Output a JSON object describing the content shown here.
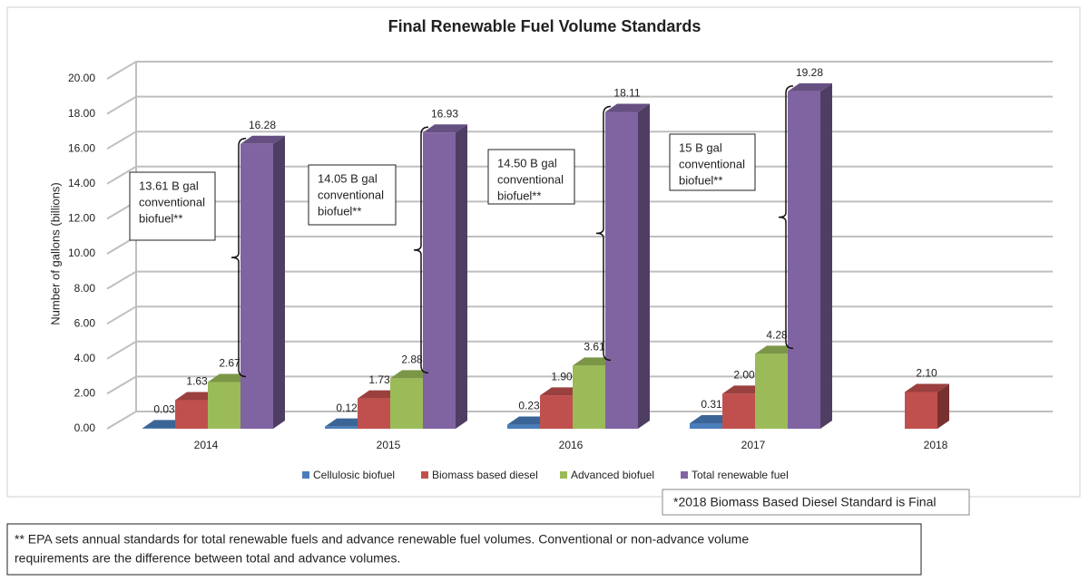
{
  "chart_data": {
    "type": "bar3d",
    "title": "Final Renewable Fuel Volume Standards",
    "y_label": "Number of gallons (billions)",
    "categories": [
      "2014",
      "2015",
      "2016",
      "2017",
      "2018"
    ],
    "series": [
      {
        "name": "Cellulosic biofuel",
        "color": "#4a7ebb",
        "values": [
          0.03,
          0.12,
          0.23,
          0.31,
          null
        ],
        "value_labels": [
          "0.03",
          "0.12",
          "0.23",
          "0.31",
          null
        ]
      },
      {
        "name": "Biomass based diesel",
        "color": "#c0504d",
        "values": [
          1.63,
          1.73,
          1.9,
          2.0,
          2.1
        ],
        "value_labels": [
          "1.63",
          "1.73",
          "1.90",
          "2.00",
          "2.10"
        ]
      },
      {
        "name": "Advanced biofuel",
        "color": "#9bbb59",
        "values": [
          2.67,
          2.88,
          3.61,
          4.28,
          null
        ],
        "value_labels": [
          "2.67",
          "2.88",
          "3.61",
          "4.28",
          null
        ]
      },
      {
        "name": "Total renewable fuel",
        "color": "#8064a2",
        "values": [
          16.28,
          16.93,
          18.11,
          19.28,
          null
        ],
        "value_labels": [
          "16.28",
          "16.93",
          "18.11",
          "19.28",
          null
        ]
      }
    ],
    "ylim": [
      0,
      20
    ],
    "yticks": [
      {
        "value": 0,
        "label": "0.00"
      },
      {
        "value": 2,
        "label": "2.00"
      },
      {
        "value": 4,
        "label": "4.00"
      },
      {
        "value": 6,
        "label": "6.00"
      },
      {
        "value": 8,
        "label": "8.00"
      },
      {
        "value": 10,
        "label": "10.00"
      },
      {
        "value": 12,
        "label": "12.00"
      },
      {
        "value": 14,
        "label": "14.00"
      },
      {
        "value": 16,
        "label": "16.00"
      },
      {
        "value": 18,
        "label": "18.00"
      },
      {
        "value": 20,
        "label": "20.00"
      }
    ],
    "grid": true,
    "legend": "bottom",
    "annotations": [
      {
        "lines": [
          "13.61 B gal",
          "conventional",
          "biofuel**"
        ]
      },
      {
        "lines": [
          "14.05 B gal",
          "conventional",
          "biofuel**"
        ]
      },
      {
        "lines": [
          "14.50 B gal",
          "conventional",
          "biofuel**"
        ]
      },
      {
        "lines": [
          "15 B gal",
          "conventional",
          "biofuel**"
        ]
      }
    ],
    "note": "*2018 Biomass Based Diesel Standard is Final",
    "footnote": [
      "** EPA sets annual standards for total renewable fuels and advance renewable fuel volumes.  Conventional or non-advance volume",
      "requirements are the difference between total and advance volumes."
    ]
  }
}
